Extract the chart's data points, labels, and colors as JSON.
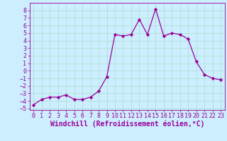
{
  "x": [
    0,
    1,
    2,
    3,
    4,
    5,
    6,
    7,
    8,
    9,
    10,
    11,
    12,
    13,
    14,
    15,
    16,
    17,
    18,
    19,
    20,
    21,
    22,
    23
  ],
  "y": [
    -4.5,
    -3.8,
    -3.5,
    -3.5,
    -3.2,
    -3.8,
    -3.8,
    -3.5,
    -2.7,
    -0.8,
    4.8,
    4.6,
    4.8,
    6.8,
    4.8,
    8.2,
    4.6,
    5.0,
    4.8,
    4.2,
    1.2,
    -0.5,
    -1.0,
    -1.2
  ],
  "line_color": "#990099",
  "marker_color": "#990099",
  "bg_color": "#cceeff",
  "grid_color": "#aaddcc",
  "xlabel": "Windchill (Refroidissement éolien,°C)",
  "xlim": [
    -0.5,
    23.5
  ],
  "ylim": [
    -5.2,
    9.0
  ],
  "yticks": [
    -5,
    -4,
    -3,
    -2,
    -1,
    0,
    1,
    2,
    3,
    4,
    5,
    6,
    7,
    8
  ],
  "xticks": [
    0,
    1,
    2,
    3,
    4,
    5,
    6,
    7,
    8,
    9,
    10,
    11,
    12,
    13,
    14,
    15,
    16,
    17,
    18,
    19,
    20,
    21,
    22,
    23
  ],
  "xlabel_fontsize": 7.0,
  "tick_fontsize": 6.0
}
